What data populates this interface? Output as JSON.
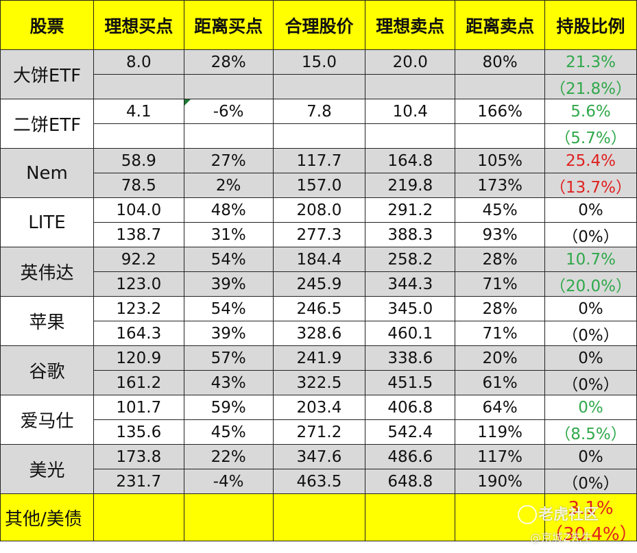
{
  "columns": [
    "股票",
    "理想买点",
    "距离买点",
    "合理股价",
    "理想卖点",
    "距离卖点",
    "持股比例"
  ],
  "rows": [
    {
      "name": "大饼ETF",
      "shade": "gray",
      "r1": [
        "8.0",
        "28%",
        "15.0",
        "20.0",
        "80%",
        "21.3%"
      ],
      "r2": [
        "",
        "",
        "",
        "",
        "",
        "（21.8%）"
      ],
      "pct_color": "green",
      "mark": false
    },
    {
      "name": "二饼ETF",
      "shade": "white",
      "r1": [
        "4.1",
        "-6%",
        "7.8",
        "10.4",
        "166%",
        "5.6%"
      ],
      "r2": [
        "",
        "",
        "",
        "",
        "",
        "（5.7%）"
      ],
      "pct_color": "green",
      "mark": true
    },
    {
      "name": "Nem",
      "shade": "gray",
      "r1": [
        "58.9",
        "27%",
        "117.7",
        "164.8",
        "105%",
        "25.4%"
      ],
      "r2": [
        "78.5",
        "2%",
        "157.0",
        "219.8",
        "173%",
        "（13.7%）"
      ],
      "pct_color": "red",
      "mark": false
    },
    {
      "name": "LITE",
      "shade": "white",
      "r1": [
        "104.0",
        "48%",
        "208.0",
        "291.2",
        "45%",
        "0%"
      ],
      "r2": [
        "138.7",
        "31%",
        "277.3",
        "388.3",
        "93%",
        "（0%）"
      ],
      "pct_color": "black",
      "mark": false
    },
    {
      "name": "英伟达",
      "shade": "gray",
      "r1": [
        "92.2",
        "54%",
        "184.4",
        "258.2",
        "28%",
        "10.7%"
      ],
      "r2": [
        "123.0",
        "39%",
        "245.9",
        "344.3",
        "71%",
        "（20.0%）"
      ],
      "pct_color": "green",
      "mark": false
    },
    {
      "name": "苹果",
      "shade": "white",
      "r1": [
        "123.2",
        "54%",
        "246.5",
        "345.0",
        "28%",
        "0%"
      ],
      "r2": [
        "164.3",
        "39%",
        "328.6",
        "460.1",
        "71%",
        "（0%）"
      ],
      "pct_color": "black",
      "mark": false
    },
    {
      "name": "谷歌",
      "shade": "gray",
      "r1": [
        "120.9",
        "57%",
        "241.9",
        "338.6",
        "20%",
        "0%"
      ],
      "r2": [
        "161.2",
        "43%",
        "322.5",
        "451.5",
        "61%",
        "（0%）"
      ],
      "pct_color": "black",
      "mark": false
    },
    {
      "name": "爱马仕",
      "shade": "white",
      "r1": [
        "101.7",
        "59%",
        "203.4",
        "406.8",
        "64%",
        "0%"
      ],
      "r2": [
        "135.6",
        "45%",
        "271.2",
        "542.4",
        "119%",
        "（8.5%）"
      ],
      "pct_color": "green",
      "mark": false
    },
    {
      "name": "美光",
      "shade": "gray",
      "r1": [
        "173.8",
        "22%",
        "347.6",
        "486.6",
        "117%",
        "0%"
      ],
      "r2": [
        "231.7",
        "-4%",
        "463.5",
        "648.8",
        "190%",
        "（0%）"
      ],
      "pct_color": "black",
      "mark": false
    }
  ],
  "footer": {
    "name": "其他/美债",
    "pct1": "3.1%",
    "pct2": "（30.4%）"
  },
  "watermark": {
    "brand": "老虎社区",
    "user": "@京城Z先生"
  },
  "colors": {
    "header_bg": "#ffff00",
    "shade_gray": "#d9d9d9",
    "green": "#2fa84a",
    "red": "#e02020"
  }
}
